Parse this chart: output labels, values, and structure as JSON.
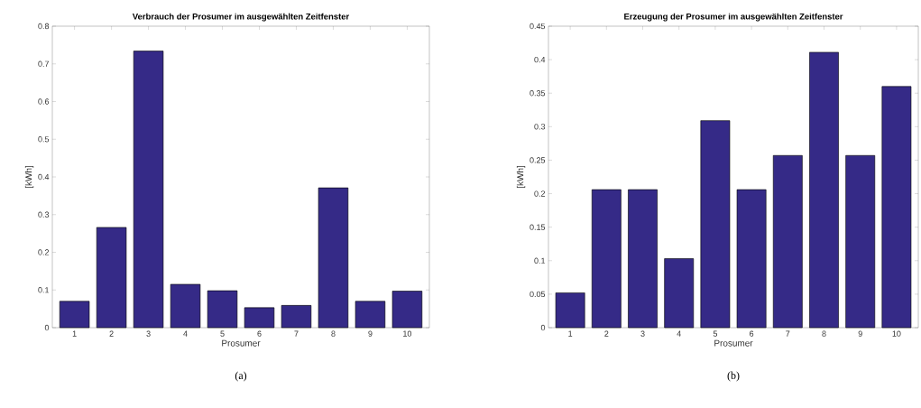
{
  "chart_data": [
    {
      "type": "bar",
      "title": "Verbrauch der Prosumer im ausgewählten Zeitfenster",
      "xlabel": "Prosumer",
      "ylabel": "[kWh]",
      "categories": [
        "1",
        "2",
        "3",
        "4",
        "5",
        "6",
        "7",
        "8",
        "9",
        "10"
      ],
      "values": [
        0.07,
        0.266,
        0.734,
        0.115,
        0.098,
        0.053,
        0.059,
        0.371,
        0.07,
        0.097
      ],
      "color": "#352a87",
      "ylim": [
        0,
        0.8
      ],
      "yticks": [
        0,
        0.1,
        0.2,
        0.3,
        0.4,
        0.5,
        0.6,
        0.7,
        0.8
      ],
      "grid": false,
      "annotations": [
        "(a)"
      ]
    },
    {
      "type": "bar",
      "title": "Erzeugung der Prosumer im ausgewählten Zeitfenster",
      "xlabel": "Prosumer",
      "ylabel": "[kWh]",
      "categories": [
        "1",
        "2",
        "3",
        "4",
        "5",
        "6",
        "7",
        "8",
        "9",
        "10"
      ],
      "values": [
        0.052,
        0.206,
        0.206,
        0.103,
        0.309,
        0.206,
        0.257,
        0.411,
        0.257,
        0.36
      ],
      "color": "#352a87",
      "ylim": [
        0,
        0.45
      ],
      "yticks": [
        0,
        0.05,
        0.1,
        0.15,
        0.2,
        0.25,
        0.3,
        0.35,
        0.4,
        0.45
      ],
      "grid": false,
      "annotations": [
        "(b)"
      ]
    }
  ]
}
